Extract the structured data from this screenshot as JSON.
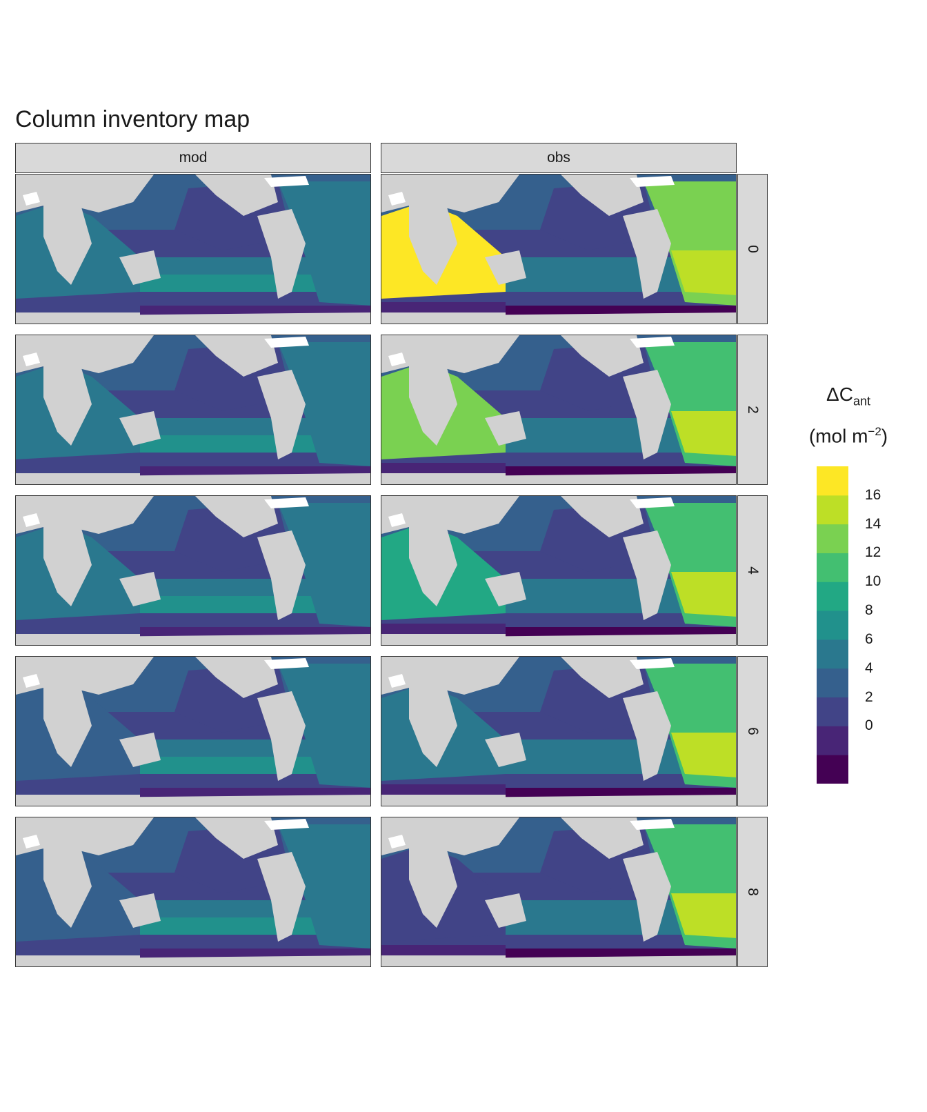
{
  "title": "Column inventory map",
  "columns": [
    "mod",
    "obs"
  ],
  "rows": [
    "0",
    "2",
    "4",
    "6",
    "8"
  ],
  "legend": {
    "title_main": "ΔC",
    "title_sub": "ant",
    "units_pre": "(mol m",
    "units_sup": "−2",
    "units_post": ")",
    "tick_labels": [
      "16",
      "14",
      "12",
      "10",
      "8",
      "6",
      "4",
      "2",
      "0"
    ],
    "colors": [
      "#440154",
      "#482576",
      "#414487",
      "#35608d",
      "#2a788e",
      "#21918c",
      "#22a884",
      "#43bf71",
      "#7ad151",
      "#bddf26",
      "#fde725"
    ]
  },
  "colors": {
    "land": "#d1d1d1",
    "ice": "#ffffff",
    "strip": "#d9d9d9"
  }
}
